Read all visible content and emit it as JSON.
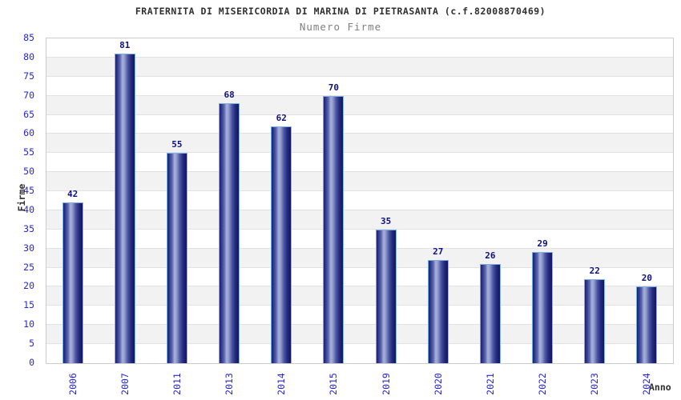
{
  "header": {
    "title": "FRATERNITA DI MISERICORDIA DI MARINA DI PIETRASANTA (c.f.82008870469)",
    "subtitle": "Numero Firme"
  },
  "chart_data": {
    "type": "bar",
    "title": "FRATERNITA DI MISERICORDIA DI MARINA DI PIETRASANTA (c.f.82008870469)",
    "subtitle": "Numero Firme",
    "categories": [
      "2006",
      "2007",
      "2011",
      "2013",
      "2014",
      "2015",
      "2019",
      "2020",
      "2021",
      "2022",
      "2023",
      "2024"
    ],
    "values": [
      42,
      81,
      55,
      68,
      62,
      70,
      35,
      27,
      26,
      29,
      22,
      20
    ],
    "xlabel": "Anno",
    "ylabel": "Firme",
    "ylim": [
      0,
      85
    ],
    "ytick_step": 5,
    "grid": true,
    "legend": false,
    "band_pattern": "alternating white/gray horizontal bands"
  },
  "colors": {
    "accent_blue": "#2626d6",
    "value_label": "#10107d",
    "title": "#2f2f2f",
    "subtitle": "#7f7f7f",
    "band_gray": "#f2f2f2",
    "grid_line": "#e2e2e2",
    "plot_border": "#cccccc",
    "bar_dark": "#191d6e",
    "bar_light": "#a9b2da",
    "bar_outline": "#7db1e3"
  }
}
